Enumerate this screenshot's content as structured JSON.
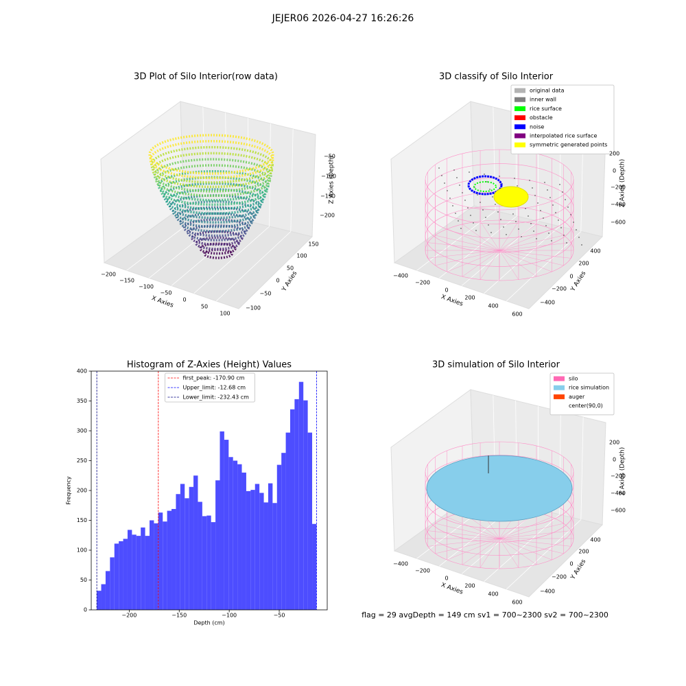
{
  "title": "JEJER06 2026-04-27 16:26:26",
  "panels": [
    {
      "title": "3D Plot of Silo Interior(row data)",
      "xlabel": "X Axies",
      "ylabel": "Y Axies",
      "zlabel": "Z Axies (Depth)",
      "xticks": [
        "−200",
        "−150",
        "−100",
        "−50",
        "0",
        "50",
        "100"
      ],
      "yticks": [
        "−100",
        "−50",
        "0",
        "50",
        "100",
        "150"
      ],
      "zticks": [
        "−50",
        "−100",
        "−150",
        "−200"
      ]
    },
    {
      "title": "3D classify of Silo Interior",
      "xlabel": "X Axies",
      "ylabel": "Y Axies",
      "zlabel": "Z Axies (Depth)",
      "xticks": [
        "−400",
        "−200",
        "0",
        "200",
        "400",
        "600"
      ],
      "yticks": [
        "−400",
        "−200",
        "0",
        "200",
        "400"
      ],
      "zticks": [
        "200",
        "0",
        "−200",
        "−400",
        "−600"
      ],
      "legend": [
        {
          "name": "original data",
          "color": "#b3b3b3"
        },
        {
          "name": "inner wall",
          "color": "#808080"
        },
        {
          "name": "rice surface",
          "color": "#00ff00"
        },
        {
          "name": "obstacle",
          "color": "#ff0000"
        },
        {
          "name": "noise",
          "color": "#0000ff"
        },
        {
          "name": "interpolated rice surface",
          "color": "#800080"
        },
        {
          "name": "symmetric generated points",
          "color": "#ffff00"
        }
      ]
    },
    {
      "title": "3D simulation of Silo Interior",
      "xlabel": "X Axies",
      "ylabel": "Y Axies",
      "zlabel": "Z Axies (Depth)",
      "xticks": [
        "−400",
        "−200",
        "0",
        "200",
        "400",
        "600"
      ],
      "yticks": [
        "−400",
        "−200",
        "0",
        "200",
        "400"
      ],
      "zticks": [
        "200",
        "0",
        "−200",
        "−400",
        "−600"
      ],
      "legend": [
        {
          "name": "silo",
          "color": "#ff69b4"
        },
        {
          "name": "rice simulation",
          "color": "#87ceeb"
        },
        {
          "name": "auger",
          "color": "#ff4500"
        },
        {
          "name": "center(90,0)",
          "color": "#ffffff"
        }
      ]
    }
  ],
  "chart_data": {
    "type": "histogram",
    "title": "Histogram of Z-Axies (Height) Values",
    "xlabel": "Depth (cm)",
    "ylabel": "Frequency",
    "color": "#4d4dff",
    "bins": [
      -232.43,
      -228.035,
      -223.64,
      -219.245,
      -214.85,
      -210.455,
      -206.06,
      -201.665,
      -197.27,
      -192.875,
      -188.48,
      -184.085,
      -179.69,
      -175.295,
      -170.9,
      -166.505,
      -162.11,
      -157.715,
      -153.32,
      -148.925,
      -144.53,
      -140.135,
      -135.74,
      -131.345,
      -126.95,
      -122.555,
      -118.16,
      -113.765,
      -109.37,
      -104.975,
      -100.58,
      -96.185,
      -91.79,
      -87.395,
      -83.0,
      -78.605,
      -74.21,
      -69.815,
      -65.42,
      -61.025,
      -56.63,
      -52.235,
      -47.84,
      -43.445,
      -39.05,
      -34.655,
      -30.26,
      -25.865,
      -21.47,
      -17.075,
      -12.68
    ],
    "values": [
      32,
      43,
      65,
      88,
      111,
      115,
      119,
      134,
      126,
      124,
      138,
      124,
      150,
      145,
      163,
      148,
      166,
      169,
      194,
      211,
      187,
      206,
      225,
      181,
      157,
      158,
      147,
      217,
      299,
      285,
      256,
      250,
      244,
      230,
      199,
      201,
      211,
      196,
      180,
      212,
      179,
      243,
      263,
      297,
      336,
      353,
      382,
      351,
      297,
      144
    ],
    "xlim": [
      -238,
      -2
    ],
    "ylim": [
      0,
      400
    ],
    "xticks": [
      {
        "value": -200,
        "label": "−200"
      },
      {
        "value": -150,
        "label": "−150"
      },
      {
        "value": -100,
        "label": "−100"
      },
      {
        "value": -50,
        "label": "−50"
      }
    ],
    "yticks": [
      0,
      50,
      100,
      150,
      200,
      250,
      300,
      350,
      400
    ],
    "vlines": [
      {
        "label": "first_peak: -170.90 cm",
        "value": -170.9,
        "color": "#ff0000"
      },
      {
        "label": "Upper_limit: -12.68 cm",
        "value": -12.68,
        "color": "#0000ff"
      },
      {
        "label": "Lower_limit: -232.43 cm",
        "value": -232.43,
        "color": "#000080"
      }
    ],
    "legend_loc": "upper center"
  },
  "footer": "flag = 29  avgDepth = 149 cm  sv1 = 700~2300  sv2 = 700~2300"
}
